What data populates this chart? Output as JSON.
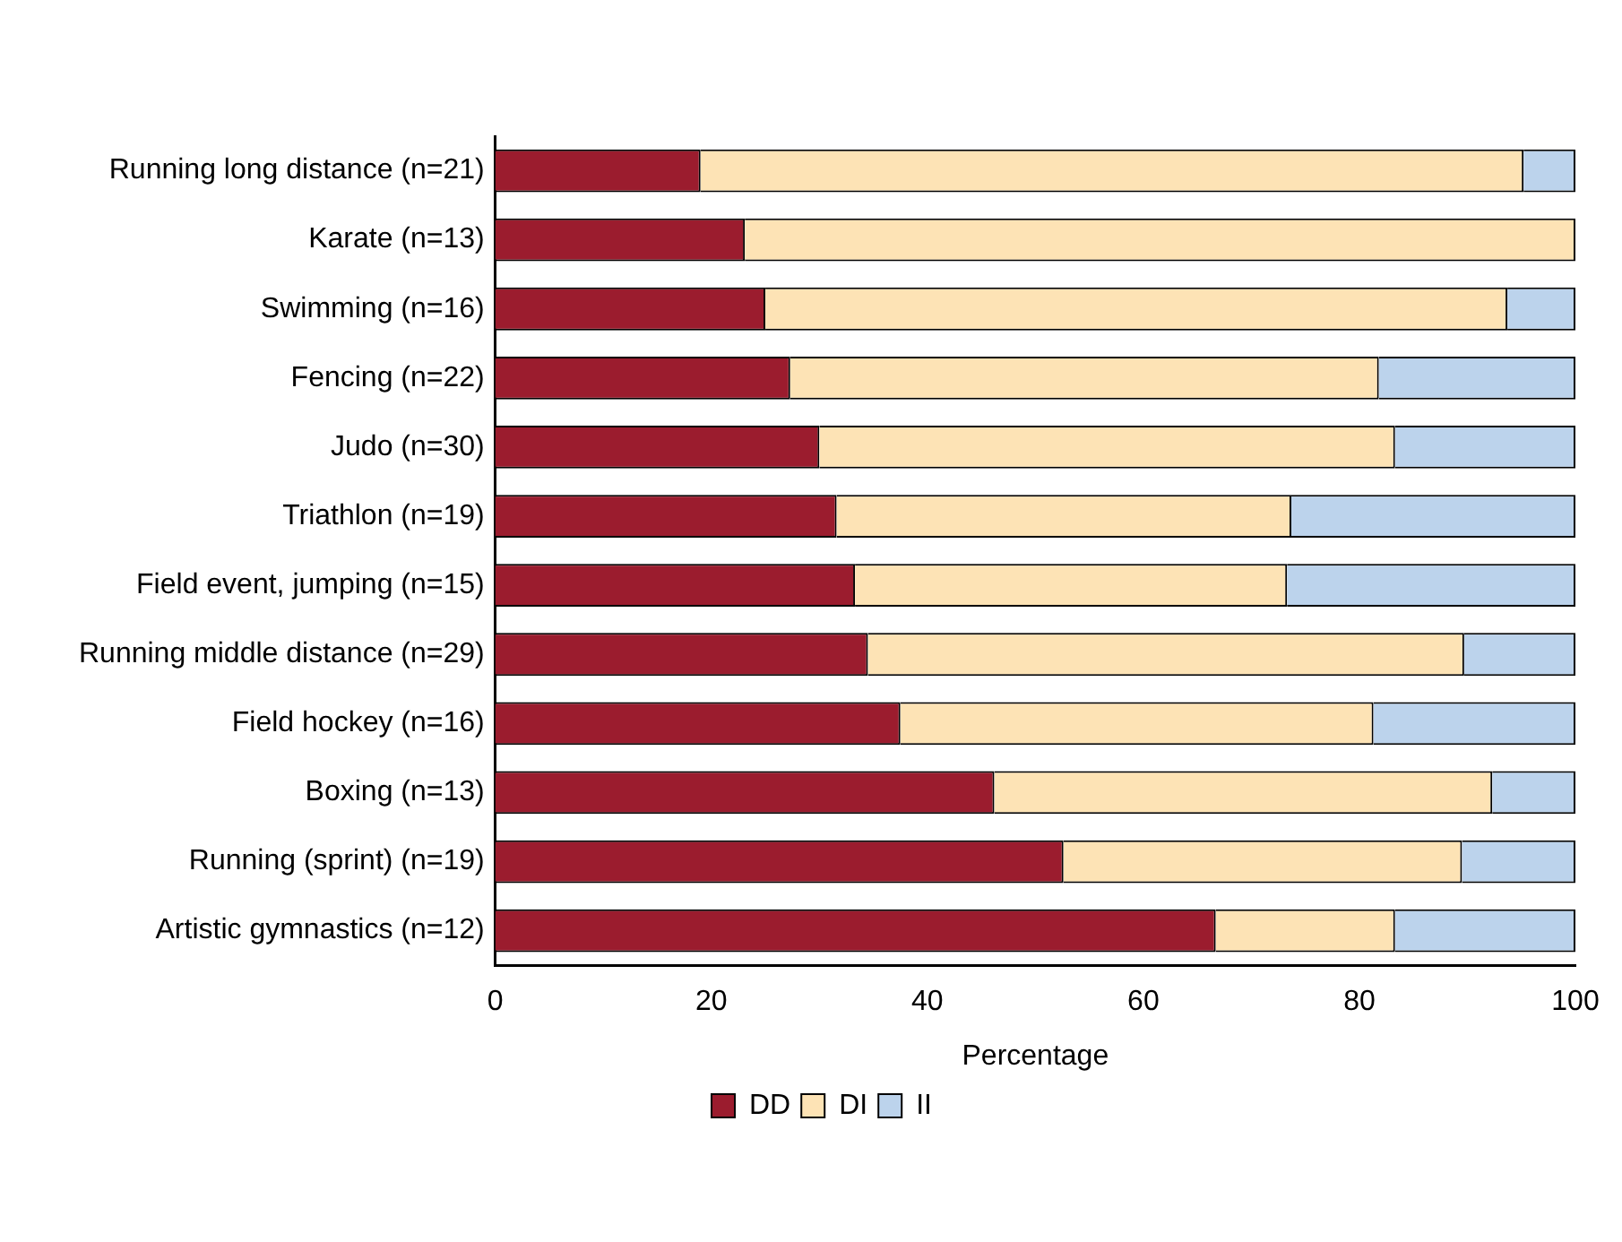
{
  "chart_data": {
    "type": "bar",
    "orientation": "horizontal",
    "stacked": true,
    "xlabel": "Percentage",
    "categories": [
      "Running long distance (n=21)",
      "Karate (n=13)",
      "Swimming (n=16)",
      "Fencing (n=22)",
      "Judo (n=30)",
      "Triathlon (n=19)",
      "Field event, jumping (n=15)",
      "Running middle distance (n=29)",
      "Field hockey (n=16)",
      "Boxing (n=13)",
      "Running (sprint) (n=19)",
      "Artistic gymnastics (n=12)"
    ],
    "series": [
      {
        "name": "DD",
        "color": "#9b1c2e",
        "values": [
          19.0,
          23.1,
          25,
          27.3,
          30,
          31.6,
          33.3,
          34.5,
          37.5,
          46.2,
          52.6,
          66.7
        ]
      },
      {
        "name": "DI",
        "color": "#fde3b5",
        "values": [
          76.2,
          76.9,
          68.7,
          54.5,
          53.3,
          42.1,
          40,
          55.2,
          43.8,
          46.1,
          36.9,
          16.6
        ]
      },
      {
        "name": "II",
        "color": "#bcd3ec",
        "values": [
          4.8,
          0,
          6.3,
          18.2,
          16.7,
          26.3,
          26.7,
          10.3,
          18.7,
          7.7,
          10.5,
          16.7
        ]
      }
    ],
    "xlim": [
      0,
      100
    ],
    "xticks": [
      0,
      20,
      40,
      60,
      80,
      100
    ],
    "grid": false,
    "legend": "bottom"
  }
}
